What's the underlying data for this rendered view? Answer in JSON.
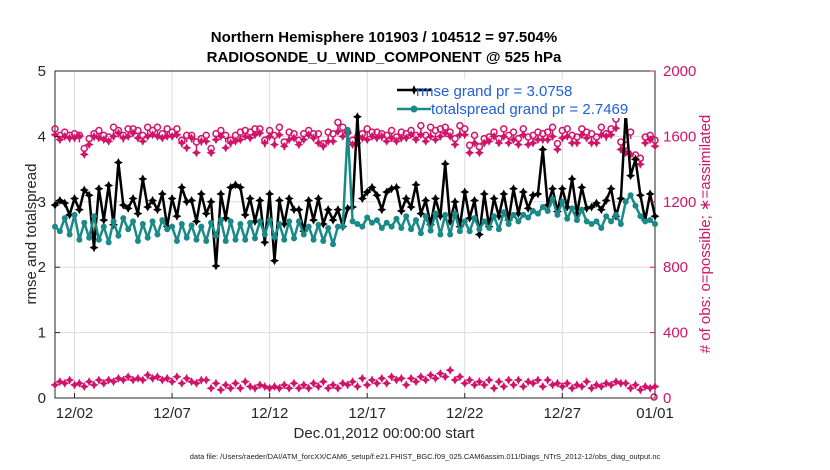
{
  "chart_data": {
    "type": "line",
    "title": "Northern Hemisphere 101903 / 104512 = 97.504%",
    "subtitle": "RADIOSONDE_U_WIND_COMPONENT @ 525 hPa",
    "xlabel": "Dec.01,2012 00:00:00 start",
    "ylabel": "rmse and totalspread",
    "ylabel_right": "# of obs: o=possible; ∗=assimilated",
    "footer": "data file: /Users/raeder/DAI/ATM_forcXX/CAM6_setup/f.e21.FHIST_BGC.f09_025.CAM6assim.011/Diags_NTrS_2012-12/obs_diag_output.nc",
    "xlim": [
      0.5,
      31.25
    ],
    "ylim": [
      0,
      5
    ],
    "ylim_right": [
      0,
      2000
    ],
    "x_ticks": [
      1.5,
      6.5,
      11.5,
      16.5,
      21.5,
      26.5,
      31.5
    ],
    "x_tick_labels": [
      "12/02",
      "12/07",
      "12/12",
      "12/17",
      "12/22",
      "12/27",
      "01/01"
    ],
    "y_ticks": [
      0,
      1,
      2,
      3,
      4,
      5
    ],
    "y_tick_labels": [
      "0",
      "1",
      "2",
      "3",
      "4",
      "5"
    ],
    "y_right_ticks": [
      0,
      400,
      800,
      1200,
      1600,
      2000
    ],
    "y_right_tick_labels": [
      "0",
      "400",
      "800",
      "1200",
      "1600",
      "2000"
    ],
    "grid": true,
    "legend_position": "top-right",
    "x": [
      0.5,
      0.75,
      1.0,
      1.25,
      1.5,
      1.75,
      2.0,
      2.25,
      2.5,
      2.75,
      3.0,
      3.25,
      3.5,
      3.75,
      4.0,
      4.25,
      4.5,
      4.75,
      5.0,
      5.25,
      5.5,
      5.75,
      6.0,
      6.25,
      6.5,
      6.75,
      7.0,
      7.25,
      7.5,
      7.75,
      8.0,
      8.25,
      8.5,
      8.75,
      9.0,
      9.25,
      9.5,
      9.75,
      10.0,
      10.25,
      10.5,
      10.75,
      11.0,
      11.25,
      11.5,
      11.75,
      12.0,
      12.25,
      12.5,
      12.75,
      13.0,
      13.25,
      13.5,
      13.75,
      14.0,
      14.25,
      14.5,
      14.75,
      15.0,
      15.25,
      15.5,
      15.75,
      16.0,
      16.25,
      16.5,
      16.75,
      17.0,
      17.25,
      17.5,
      17.75,
      18.0,
      18.25,
      18.5,
      18.75,
      19.0,
      19.25,
      19.5,
      19.75,
      20.0,
      20.25,
      20.5,
      20.75,
      21.0,
      21.25,
      21.5,
      21.75,
      22.0,
      22.25,
      22.5,
      22.75,
      23.0,
      23.25,
      23.5,
      23.75,
      24.0,
      24.25,
      24.5,
      24.75,
      25.0,
      25.25,
      25.5,
      25.75,
      26.0,
      26.25,
      26.5,
      26.75,
      27.0,
      27.25,
      27.5,
      27.75,
      28.0,
      28.25,
      28.5,
      28.75,
      29.0,
      29.25,
      29.5,
      29.75,
      30.0,
      30.25,
      30.5,
      30.75,
      31.0,
      31.25
    ],
    "series": [
      {
        "name": "rmse grand pr = 3.0758",
        "color": "#000000",
        "marker": "star",
        "values": [
          2.95,
          3.02,
          2.98,
          2.8,
          3.05,
          2.88,
          3.18,
          3.1,
          2.3,
          3.2,
          2.72,
          3.25,
          2.65,
          3.6,
          2.95,
          2.9,
          3.05,
          2.82,
          3.35,
          2.92,
          3.02,
          2.88,
          3.12,
          2.62,
          3.05,
          2.78,
          3.22,
          3.0,
          3.02,
          2.7,
          3.12,
          2.82,
          3.0,
          2.02,
          3.12,
          2.75,
          3.22,
          3.26,
          3.22,
          2.8,
          3.05,
          2.7,
          3.02,
          2.38,
          3.12,
          2.1,
          3.02,
          2.66,
          3.05,
          2.88,
          2.88,
          2.55,
          3.02,
          2.72,
          3.05,
          2.66,
          2.88,
          2.72,
          2.88,
          2.62,
          2.9,
          2.92,
          4.3,
          3.05,
          3.15,
          3.22,
          3.1,
          2.88,
          3.15,
          3.2,
          3.22,
          2.86,
          3.05,
          2.92,
          3.26,
          2.82,
          3.02,
          2.65,
          3.05,
          2.78,
          3.58,
          2.7,
          3.0,
          2.62,
          3.15,
          2.75,
          3.02,
          2.5,
          3.12,
          2.62,
          3.05,
          2.78,
          3.12,
          2.72,
          3.2,
          2.82,
          3.15,
          2.9,
          3.1,
          3.12,
          3.8,
          2.95,
          3.2,
          2.85,
          3.2,
          2.92,
          3.35,
          2.82,
          3.22,
          2.9,
          2.92,
          2.98,
          2.88,
          3.02,
          3.2,
          2.78,
          3.05,
          4.35,
          3.4,
          3.65,
          3.1,
          2.72,
          3.12,
          2.78
        ]
      },
      {
        "name": "totalspread grand pr = 2.7469",
        "color": "#1a8a88",
        "marker": "circle",
        "values": [
          2.62,
          2.55,
          2.75,
          2.5,
          2.8,
          2.42,
          2.68,
          2.45,
          2.78,
          2.42,
          2.62,
          2.38,
          2.7,
          2.48,
          2.75,
          2.58,
          2.7,
          2.4,
          2.66,
          2.45,
          2.7,
          2.5,
          2.72,
          2.58,
          2.62,
          2.4,
          2.66,
          2.45,
          2.64,
          2.42,
          2.62,
          2.4,
          2.68,
          2.48,
          2.72,
          2.4,
          2.7,
          2.42,
          2.66,
          2.42,
          2.68,
          2.44,
          2.7,
          2.5,
          2.72,
          2.46,
          2.66,
          2.42,
          2.7,
          2.44,
          2.7,
          2.5,
          2.62,
          2.42,
          2.65,
          2.4,
          2.6,
          2.35,
          2.62,
          2.62,
          4.1,
          2.7,
          2.66,
          2.62,
          2.76,
          2.68,
          2.72,
          2.6,
          2.68,
          2.62,
          2.74,
          2.6,
          2.78,
          2.58,
          2.72,
          2.52,
          2.78,
          2.56,
          2.82,
          2.5,
          2.8,
          2.5,
          2.82,
          2.55,
          2.7,
          2.55,
          2.75,
          2.58,
          2.7,
          2.6,
          2.78,
          2.58,
          2.84,
          2.66,
          2.8,
          2.7,
          2.8,
          2.76,
          2.86,
          2.82,
          2.92,
          2.86,
          3.04,
          2.8,
          3.0,
          2.74,
          2.9,
          2.72,
          2.88,
          2.7,
          2.66,
          2.7,
          2.6,
          2.78,
          2.7,
          2.8,
          2.66,
          3.0,
          3.1,
          2.94,
          2.78,
          2.7,
          2.72,
          2.66
        ]
      }
    ],
    "obs_possible": [
      1640,
      1600,
      1620,
      1600,
      1610,
      1600,
      1520,
      1580,
      1610,
      1630,
      1600,
      1590,
      1650,
      1630,
      1600,
      1640,
      1640,
      1630,
      1600,
      1650,
      1630,
      1650,
      1610,
      1640,
      1620,
      1640,
      1570,
      1600,
      1600,
      1560,
      1580,
      1600,
      1520,
      1610,
      1630,
      1600,
      1570,
      1600,
      1620,
      1630,
      1620,
      1640,
      1640,
      1570,
      1630,
      1600,
      1650,
      1560,
      1620,
      1610,
      1570,
      1610,
      1630,
      1610,
      1610,
      1550,
      1620,
      1610,
      1680,
      1650,
      1620,
      1570,
      1590,
      1610,
      1640,
      1620,
      1620,
      1610,
      1600,
      1630,
      1590,
      1620,
      1610,
      1630,
      1600,
      1660,
      1600,
      1650,
      1630,
      1640,
      1650,
      1620,
      1580,
      1660,
      1640,
      1540,
      1600,
      1530,
      1580,
      1590,
      1620,
      1580,
      1640,
      1600,
      1620,
      1580,
      1640,
      1590,
      1600,
      1620,
      1610,
      1620,
      1650,
      1550,
      1630,
      1640,
      1600,
      1590,
      1640,
      1620,
      1610,
      1590,
      1650,
      1610,
      1640,
      1700,
      1560,
      1540,
      1620,
      1480,
      1460,
      1590,
      1600,
      1570
    ],
    "obs_assimilated": [
      1610,
      1580,
      1600,
      1590,
      1590,
      1600,
      1490,
      1550,
      1600,
      1590,
      1580,
      1570,
      1600,
      1620,
      1590,
      1600,
      1620,
      1590,
      1570,
      1600,
      1610,
      1600,
      1590,
      1600,
      1600,
      1610,
      1560,
      1530,
      1590,
      1500,
      1570,
      1570,
      1500,
      1580,
      1600,
      1530,
      1560,
      1570,
      1580,
      1600,
      1590,
      1610,
      1620,
      1560,
      1600,
      1550,
      1610,
      1540,
      1580,
      1590,
      1550,
      1580,
      1610,
      1590,
      1560,
      1540,
      1570,
      1570,
      1630,
      1600,
      1620,
      1550,
      1560,
      1590,
      1580,
      1600,
      1590,
      1600,
      1570,
      1590,
      1570,
      1590,
      1590,
      1610,
      1580,
      1610,
      1570,
      1600,
      1580,
      1600,
      1620,
      1600,
      1550,
      1610,
      1610,
      1500,
      1560,
      1500,
      1560,
      1570,
      1600,
      1560,
      1600,
      1560,
      1580,
      1550,
      1610,
      1550,
      1560,
      1580,
      1580,
      1580,
      1600,
      1520,
      1590,
      1600,
      1560,
      1560,
      1610,
      1590,
      1560,
      1560,
      1610,
      1600,
      1610,
      1650,
      1520,
      1500,
      1490,
      1460,
      1430,
      1560,
      1580,
      1540
    ],
    "obs_low_track": [
      80,
      100,
      90,
      110,
      80,
      90,
      70,
      100,
      80,
      110,
      90,
      110,
      100,
      120,
      110,
      130,
      110,
      120,
      110,
      140,
      120,
      130,
      110,
      120,
      100,
      130,
      90,
      120,
      100,
      90,
      110,
      110,
      60,
      90,
      50,
      80,
      60,
      90,
      60,
      100,
      70,
      60,
      80,
      70,
      60,
      70,
      60,
      80,
      60,
      90,
      60,
      80,
      60,
      90,
      70,
      100,
      60,
      80,
      60,
      90,
      80,
      100,
      70,
      120,
      80,
      110,
      90,
      120,
      90,
      130,
      110,
      120,
      80,
      120,
      100,
      130,
      110,
      140,
      120,
      150,
      130,
      170,
      110,
      130,
      90,
      110,
      80,
      100,
      80,
      110,
      60,
      100,
      70,
      110,
      80,
      110,
      70,
      100,
      90,
      110,
      70,
      110,
      80,
      90,
      70,
      90,
      60,
      80,
      70,
      100,
      60,
      80,
      70,
      90,
      80,
      100,
      90,
      90,
      60,
      80,
      50,
      70,
      60,
      70
    ]
  }
}
